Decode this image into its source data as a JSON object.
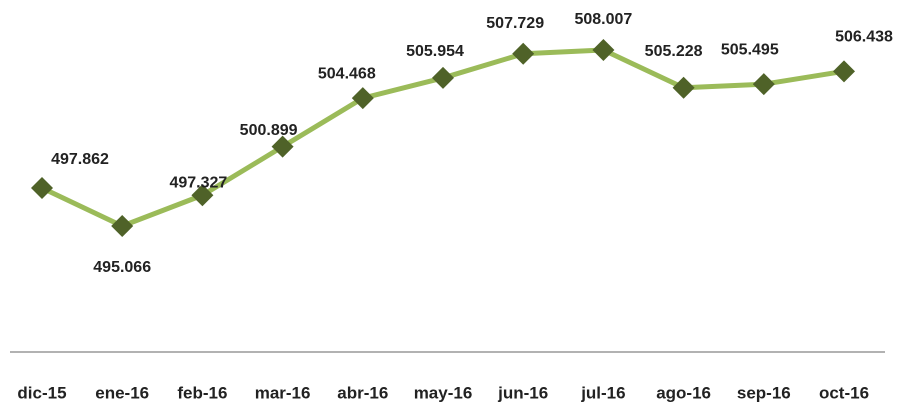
{
  "chart_data": {
    "type": "line",
    "categories": [
      "dic-15",
      "ene-16",
      "feb-16",
      "mar-16",
      "abr-16",
      "may-16",
      "jun-16",
      "jul-16",
      "ago-16",
      "sep-16",
      "oct-16"
    ],
    "series": [
      {
        "color": "#9bbb59",
        "values": [
          497.862,
          495.066,
          497.327,
          500.899,
          504.468,
          505.954,
          507.729,
          508.007,
          505.228,
          505.495,
          506.438
        ]
      }
    ],
    "marker_color": "#4f6228"
  }
}
